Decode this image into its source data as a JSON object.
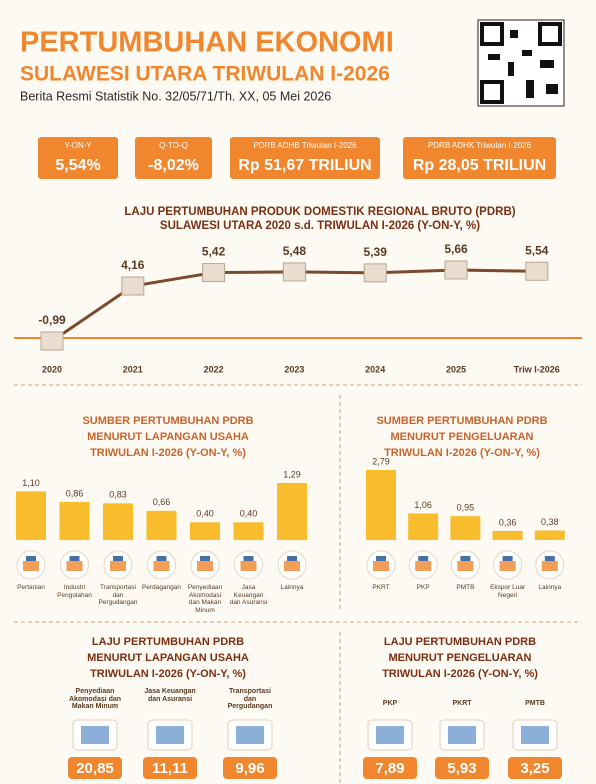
{
  "header": {
    "title": "PERTUMBUHAN EKONOMI",
    "subtitle": "SULAWESI UTARA TRIWULAN I-2026",
    "release": "Berita Resmi Statistik No. 32/05/71/Th. XX, 05 Mei 2026"
  },
  "indicators": [
    {
      "label": "Y-ON-Y",
      "value": "5,54%"
    },
    {
      "label": "Q-TO-Q",
      "value": "-8,02%"
    },
    {
      "label": "PDRB ADHB Triwulan I-2026",
      "value": "Rp 51,67 TRILIUN"
    },
    {
      "label": "PDRB ADHK Triwulan I-2026",
      "value": "Rp 28,05 TRILIUN"
    }
  ],
  "chart_data": [
    {
      "type": "line",
      "title": [
        "LAJU PERTUMBUHAN PRODUK DOMESTIK REGIONAL BRUTO (PDRB)",
        "SULAWESI UTARA 2020 s.d. TRIWULAN I-2026 (Y-ON-Y, %)"
      ],
      "categories": [
        "2020",
        "2021",
        "2022",
        "2023",
        "2024",
        "2025",
        "Triw I-2026"
      ],
      "values": [
        -0.99,
        4.16,
        5.42,
        5.48,
        5.39,
        5.66,
        5.54
      ],
      "value_labels": [
        "-0,99",
        "4,16",
        "5,42",
        "5,48",
        "5,39",
        "5,66",
        "5,54"
      ],
      "color": "#7a4a2a"
    },
    {
      "type": "bar",
      "title": [
        "SUMBER PERTUMBUHAN PDRB",
        "MENURUT LAPANGAN USAHA",
        "TRIWULAN I-2026 (Y-ON-Y, %)"
      ],
      "categories": [
        "Pertanian",
        "Industri Pengolahan",
        "Transportasi dan Pergudangan",
        "Perdagangan",
        "Penyediaan Akomodasi dan Makan Minum",
        "Jasa Keuangan dan Asuransi",
        "Lainnya"
      ],
      "values": [
        1.1,
        0.86,
        0.83,
        0.66,
        0.4,
        0.4,
        1.29
      ],
      "value_labels": [
        "1,10",
        "0,86",
        "0,83",
        "0,66",
        "0,40",
        "0,40",
        "1,29"
      ],
      "color": "#f9bc2c"
    },
    {
      "type": "bar",
      "title": [
        "SUMBER PERTUMBUHAN PDRB",
        "MENURUT PENGELUARAN",
        "TRIWULAN I-2026 (Y-ON-Y, %)"
      ],
      "categories": [
        "PKRT",
        "PKP",
        "PMTB",
        "Ekspor Luar Negeri",
        "Lainnya"
      ],
      "values": [
        2.79,
        1.06,
        0.95,
        0.36,
        0.38
      ],
      "value_labels": [
        "2,79",
        "1,06",
        "0,95",
        "0,36",
        "0,38"
      ],
      "color": "#f9bc2c"
    }
  ],
  "highlights": [
    {
      "title": [
        "LAJU PERTUMBUHAN PDRB",
        "MENURUT LAPANGAN USAHA",
        "TRIWULAN I-2026 (Y-ON-Y, %)"
      ],
      "items": [
        {
          "label": "Penyediaan Akomodasi dan Makan Minum",
          "value": "20,85"
        },
        {
          "label": "Jasa Keuangan dan Asuransi",
          "value": "11,11"
        },
        {
          "label": "Transportasi dan Pergudangan",
          "value": "9,96"
        }
      ]
    },
    {
      "title": [
        "LAJU PERTUMBUHAN PDRB",
        "MENURUT PENGELUARAN",
        "TRIWULAN I-2026 (Y-ON-Y, %)"
      ],
      "items": [
        {
          "label": "PKP",
          "value": "7,89"
        },
        {
          "label": "PKRT",
          "value": "5,93"
        },
        {
          "label": "PMTB",
          "value": "3,25"
        }
      ]
    }
  ]
}
